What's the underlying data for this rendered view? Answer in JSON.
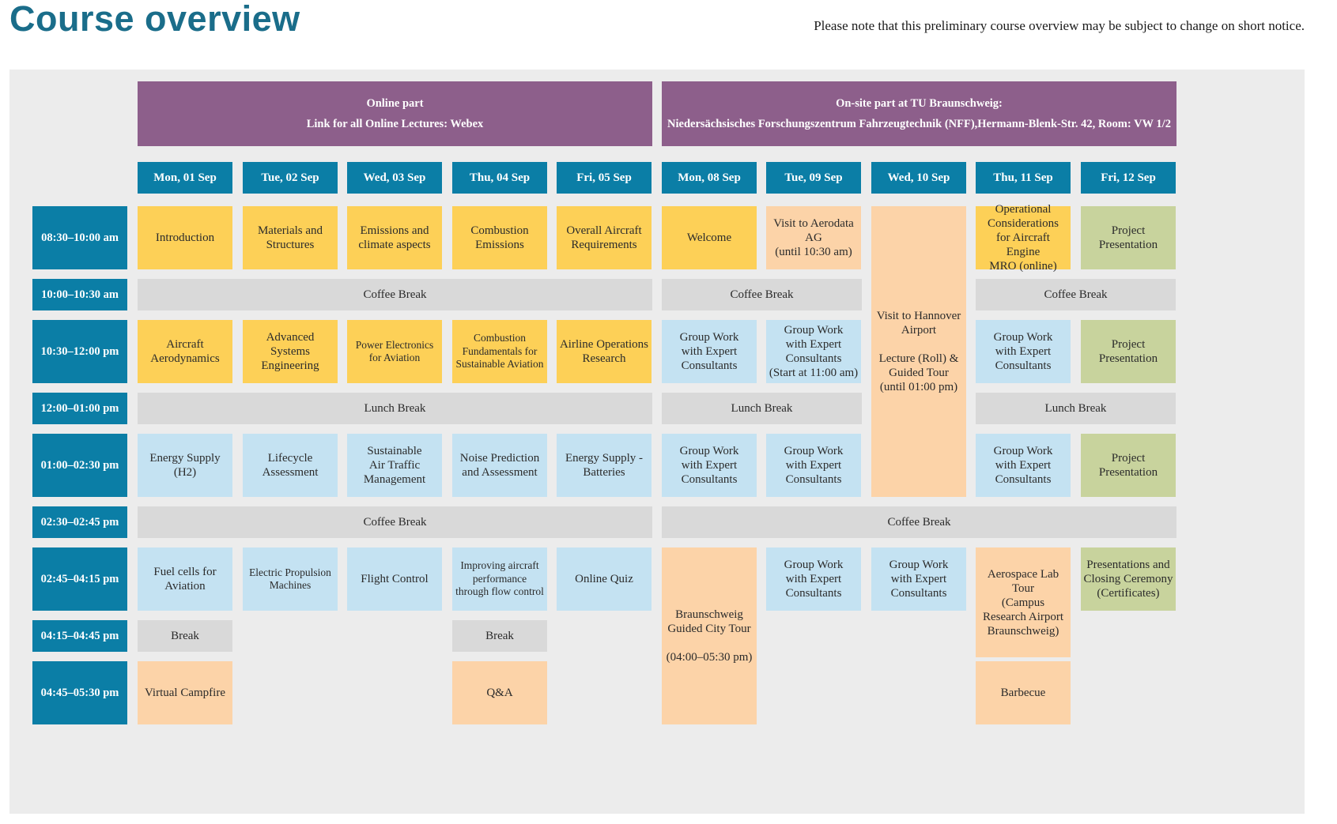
{
  "title": "Course overview",
  "note": "Please note that this preliminary course overview may be subject to change on short notice.",
  "parts": {
    "online": {
      "line1": "Online part",
      "line2": "Link for all Online Lectures: Webex"
    },
    "onsite": {
      "line1": "On-site part at TU Braunschweig:",
      "line2": "Niedersächsisches Forschungszentrum Fahrzeugtechnik (NFF),Hermann-Blenk-Str. 42, Room: VW 1/2"
    }
  },
  "days": [
    "Mon, 01 Sep",
    "Tue, 02 Sep",
    "Wed, 03 Sep",
    "Thu, 04 Sep",
    "Fri, 05 Sep",
    "Mon, 08 Sep",
    "Tue, 09 Sep",
    "Wed, 10 Sep",
    "Thu, 11 Sep",
    "Fri, 12 Sep"
  ],
  "times": [
    "08:30–10:00 am",
    "10:00–10:30 am",
    "10:30–12:00 pm",
    "12:00–01:00 pm",
    "01:00–02:30 pm",
    "02:30–02:45 pm",
    "02:45–04:15 pm",
    "04:15–04:45 pm",
    "04:45–05:30 pm"
  ],
  "sessions": {
    "intro": "Introduction",
    "materials": "Materials and\nStructures",
    "emissions_climate": "Emissions and\nclimate aspects",
    "combustion_emissions": "Combustion\nEmissions",
    "aircraft_req": "Overall Aircraft\nRequirements",
    "welcome": "Welcome",
    "aerodata": "Visit to Aerodata\nAG\n(until 10:30 am)",
    "hannover": "Visit to Hannover\nAirport\n\nLecture (Roll) &\nGuided Tour\n(until 01:00 pm)",
    "operational": "Operational\nConsiderations\nfor Aircraft Engine\nMRO (online)",
    "project": "Project\nPresentation",
    "coffee": "Coffee Break",
    "aerodynamics": "Aircraft\nAerodynamics",
    "advanced_systems": "Advanced Systems\nEngineering",
    "power_electronics": "Power Electronics\nfor Aviation",
    "combustion_fundamentals": "Combustion\nFundamentals for\nSustainable Aviation",
    "airline_ops": "Airline Operations\nResearch",
    "group_work": "Group Work\nwith Expert\nConsultants",
    "group_work_11": "Group Work\nwith Expert\nConsultants\n(Start at 11:00 am)",
    "lunch": "Lunch Break",
    "energy_h2": "Energy Supply\n(H2)",
    "lifecycle": "Lifecycle\nAssessment",
    "sustainable_atm": "Sustainable\nAir Traffic\nManagement",
    "noise": "Noise Prediction\nand Assessment",
    "energy_batteries": "Energy Supply -\nBatteries",
    "fuel_cells": "Fuel cells for\nAviation",
    "electric_propulsion": "Electric Propulsion\nMachines",
    "flight_control": "Flight Control",
    "flow_control": "Improving aircraft\nperformance\nthrough flow control",
    "online_quiz": "Online Quiz",
    "city_tour": "Braunschweig\nGuided City Tour\n\n(04:00–05:30 pm)",
    "lab_tour": "Aerospace Lab\nTour\n(Campus\nResearch Airport\nBraunschweig)",
    "closing": "Presentations and\nClosing Ceremony\n(Certificates)",
    "break": "Break",
    "campfire": "Virtual Campfire",
    "qa": "Q&A",
    "barbecue": "Barbecue"
  },
  "colors": {
    "title": "#1a6d8a",
    "header_purple": "#8d5f8b",
    "day_teal": "#0b7ea6",
    "online_yellow": "#fdd057",
    "group_blue": "#c4e2f2",
    "visit_peach": "#fcd3a8",
    "project_green": "#c8d39d",
    "break_grey": "#d9d9d9",
    "panel_grey": "#ececec"
  }
}
